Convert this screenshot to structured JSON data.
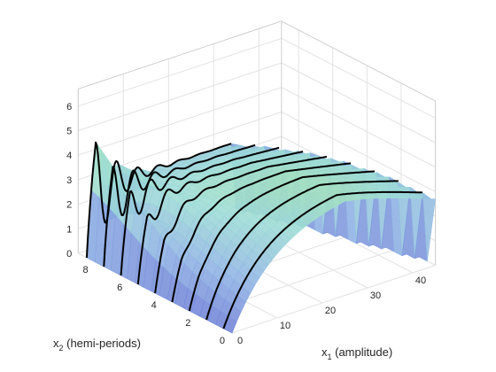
{
  "chart_data": {
    "type": "surface",
    "title": "",
    "xlabel": "x_1 (amplitude)",
    "xlabel_parts": {
      "base": "x",
      "sub": "1",
      "rest": " (amplitude)"
    },
    "ylabel": "x_2 (hemi-periods)",
    "ylabel_parts": {
      "base": "x",
      "sub": "2",
      "rest": " (hemi-periods)"
    },
    "zlabel": "",
    "xlim": [
      0,
      45
    ],
    "ylim": [
      0,
      9
    ],
    "zlim": [
      0,
      6.7
    ],
    "x_ticks": [
      "0",
      "10",
      "20",
      "30",
      "40"
    ],
    "y_ticks": [
      "0",
      "2",
      "4",
      "6",
      "8"
    ],
    "z_ticks": [
      "0",
      "1",
      "2",
      "3",
      "4",
      "5",
      "6"
    ],
    "grid": true,
    "colormap": [
      "#6e7fd6",
      "#8fb2e4",
      "#9ddcd6",
      "#aee69b",
      "#f5e24a"
    ],
    "curve_color": "#000000",
    "slice_x2_values": [
      0.5,
      1.5,
      2.5,
      3.5,
      4.5,
      5.5,
      6.5,
      7.5,
      8.5
    ],
    "peak": {
      "x1": 2,
      "x2": 8.5,
      "z": 6.6
    },
    "asymptote_z": 4.2
  }
}
